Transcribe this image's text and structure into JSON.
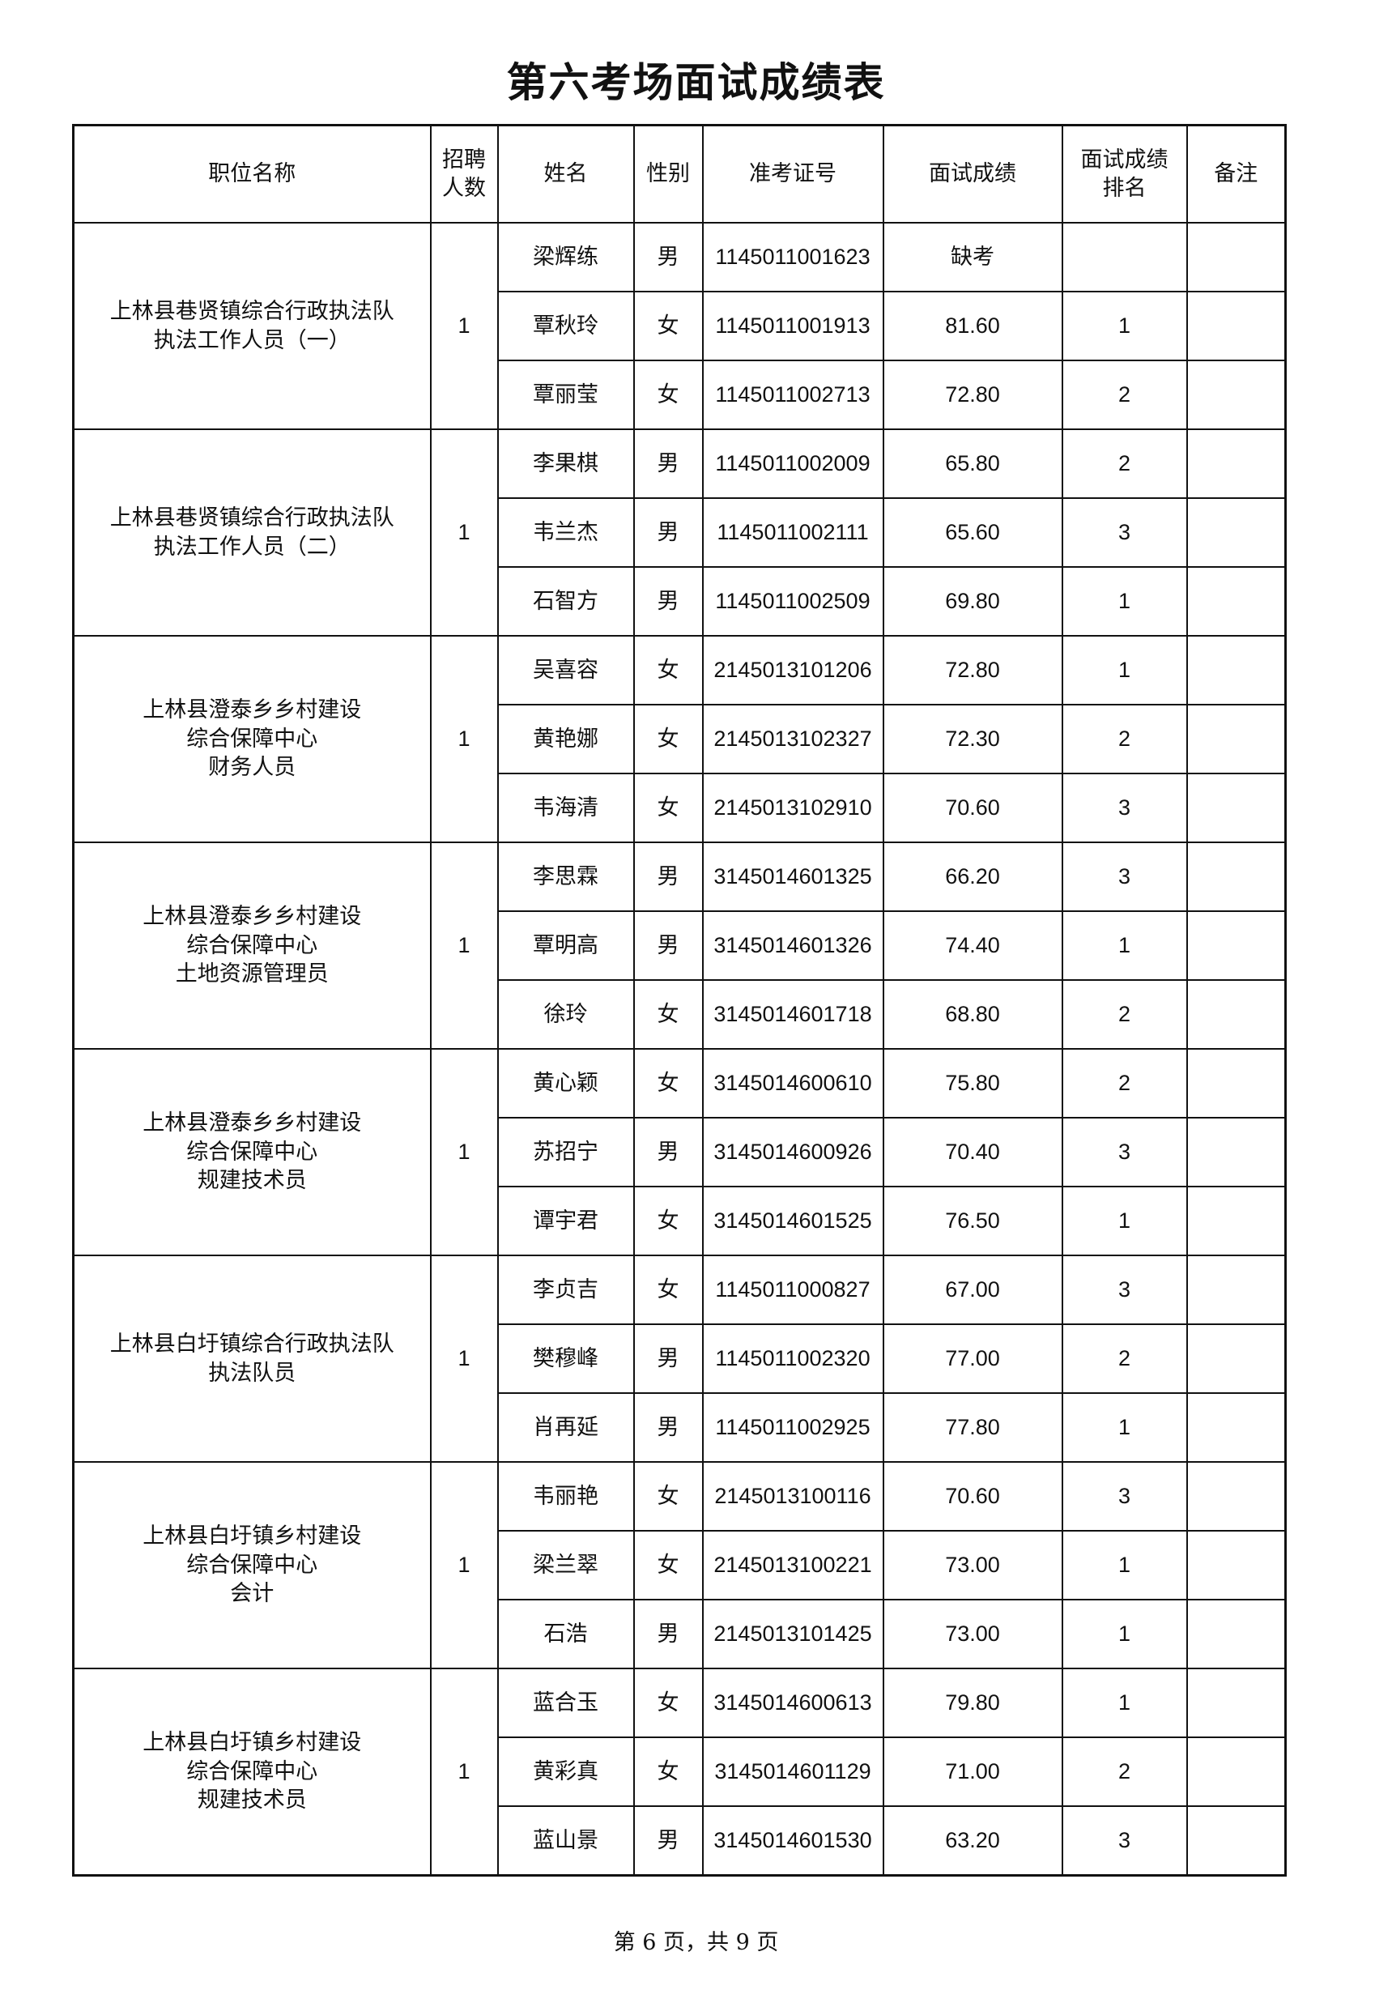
{
  "title": "第六考场面试成绩表",
  "headers": [
    "职位名称",
    "招聘人数",
    "姓名",
    "性别",
    "准考证号",
    "面试成绩",
    "面试成绩排名",
    "备注"
  ],
  "groups": [
    {
      "position": "上林县巷贤镇综合行政执法队\n执法工作人员（一）",
      "quota": "1",
      "rows": [
        {
          "name": "梁辉练",
          "gender": "男",
          "id": "1145011001623",
          "score": "缺考",
          "rank": "",
          "note": ""
        },
        {
          "name": "覃秋玲",
          "gender": "女",
          "id": "1145011001913",
          "score": "81.60",
          "rank": "1",
          "note": ""
        },
        {
          "name": "覃丽莹",
          "gender": "女",
          "id": "1145011002713",
          "score": "72.80",
          "rank": "2",
          "note": ""
        }
      ]
    },
    {
      "position": "上林县巷贤镇综合行政执法队\n执法工作人员（二）",
      "quota": "1",
      "rows": [
        {
          "name": "李果棋",
          "gender": "男",
          "id": "1145011002009",
          "score": "65.80",
          "rank": "2",
          "note": ""
        },
        {
          "name": "韦兰杰",
          "gender": "男",
          "id": "1145011002111",
          "score": "65.60",
          "rank": "3",
          "note": ""
        },
        {
          "name": "石智方",
          "gender": "男",
          "id": "1145011002509",
          "score": "69.80",
          "rank": "1",
          "note": ""
        }
      ]
    },
    {
      "position": "上林县澄泰乡乡村建设\n综合保障中心\n财务人员",
      "quota": "1",
      "rows": [
        {
          "name": "吴喜容",
          "gender": "女",
          "id": "2145013101206",
          "score": "72.80",
          "rank": "1",
          "note": ""
        },
        {
          "name": "黄艳娜",
          "gender": "女",
          "id": "2145013102327",
          "score": "72.30",
          "rank": "2",
          "note": ""
        },
        {
          "name": "韦海清",
          "gender": "女",
          "id": "2145013102910",
          "score": "70.60",
          "rank": "3",
          "note": ""
        }
      ]
    },
    {
      "position": "上林县澄泰乡乡村建设\n综合保障中心\n土地资源管理员",
      "quota": "1",
      "rows": [
        {
          "name": "李思霖",
          "gender": "男",
          "id": "3145014601325",
          "score": "66.20",
          "rank": "3",
          "note": ""
        },
        {
          "name": "覃明高",
          "gender": "男",
          "id": "3145014601326",
          "score": "74.40",
          "rank": "1",
          "note": ""
        },
        {
          "name": "徐玲",
          "gender": "女",
          "id": "3145014601718",
          "score": "68.80",
          "rank": "2",
          "note": ""
        }
      ]
    },
    {
      "position": "上林县澄泰乡乡村建设\n综合保障中心\n规建技术员",
      "quota": "1",
      "rows": [
        {
          "name": "黄心颖",
          "gender": "女",
          "id": "3145014600610",
          "score": "75.80",
          "rank": "2",
          "note": ""
        },
        {
          "name": "苏招宁",
          "gender": "男",
          "id": "3145014600926",
          "score": "70.40",
          "rank": "3",
          "note": ""
        },
        {
          "name": "谭宇君",
          "gender": "女",
          "id": "3145014601525",
          "score": "76.50",
          "rank": "1",
          "note": ""
        }
      ]
    },
    {
      "position": "上林县白圩镇综合行政执法队\n执法队员",
      "quota": "1",
      "rows": [
        {
          "name": "李贞吉",
          "gender": "女",
          "id": "1145011000827",
          "score": "67.00",
          "rank": "3",
          "note": ""
        },
        {
          "name": "樊穆峰",
          "gender": "男",
          "id": "1145011002320",
          "score": "77.00",
          "rank": "2",
          "note": ""
        },
        {
          "name": "肖再延",
          "gender": "男",
          "id": "1145011002925",
          "score": "77.80",
          "rank": "1",
          "note": ""
        }
      ]
    },
    {
      "position": "上林县白圩镇乡村建设\n综合保障中心\n会计",
      "quota": "1",
      "rows": [
        {
          "name": "韦丽艳",
          "gender": "女",
          "id": "2145013100116",
          "score": "70.60",
          "rank": "3",
          "note": ""
        },
        {
          "name": "梁兰翠",
          "gender": "女",
          "id": "2145013100221",
          "score": "73.00",
          "rank": "1",
          "note": ""
        },
        {
          "name": "石浩",
          "gender": "男",
          "id": "2145013101425",
          "score": "73.00",
          "rank": "1",
          "note": ""
        }
      ]
    },
    {
      "position": "上林县白圩镇乡村建设\n综合保障中心\n规建技术员",
      "quota": "1",
      "rows": [
        {
          "name": "蓝合玉",
          "gender": "女",
          "id": "3145014600613",
          "score": "79.80",
          "rank": "1",
          "note": ""
        },
        {
          "name": "黄彩真",
          "gender": "女",
          "id": "3145014601129",
          "score": "71.00",
          "rank": "2",
          "note": ""
        },
        {
          "name": "蓝山景",
          "gender": "男",
          "id": "3145014601530",
          "score": "63.20",
          "rank": "3",
          "note": ""
        }
      ]
    }
  ],
  "footer": "第 6 页，共 9 页"
}
